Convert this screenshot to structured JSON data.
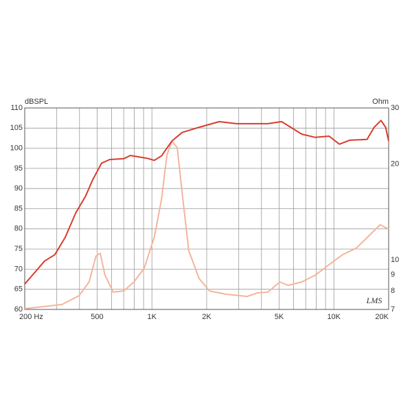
{
  "chart_data": {
    "type": "line",
    "y_label": "dBSPL",
    "y2_label": "Ohm",
    "logo": "LMS",
    "xscale": "log",
    "y2scale": "log",
    "grid": true,
    "xlim": [
      200,
      20000
    ],
    "xticks": [
      {
        "value": 200,
        "label": "200  Hz"
      },
      500,
      {
        "value": 1000,
        "label": "1K"
      },
      {
        "value": 2000,
        "label": "2K"
      },
      {
        "value": 5000,
        "label": "5K"
      },
      {
        "value": 10000,
        "label": "10K"
      },
      {
        "value": 20000,
        "label": "20K"
      }
    ],
    "xgrid": [
      300,
      400,
      600,
      700,
      800,
      900,
      3000,
      4000,
      6000,
      7000,
      8000,
      9000
    ],
    "ylim": [
      60,
      110
    ],
    "yticks": [
      60,
      65,
      70,
      75,
      80,
      85,
      90,
      95,
      100,
      105,
      110
    ],
    "y2lim": [
      7,
      30
    ],
    "y2ticks": [
      7,
      8,
      9,
      10,
      20,
      30
    ],
    "series": [
      {
        "color": "#d93a2b",
        "x": [
          200,
          257,
          293,
          334,
          381,
          433,
          472,
          529,
          587,
          700,
          761,
          833,
          946,
          1031,
          1129,
          1288,
          1465,
          1818,
          2344,
          2920,
          3639,
          4334,
          5160,
          6661,
          7915,
          9407,
          10730,
          12240,
          15210,
          16650,
          18140,
          19250,
          20000
        ],
        "values": [
          66.3,
          72.0,
          73.6,
          77.9,
          83.9,
          88.2,
          92.1,
          96.3,
          97.2,
          97.4,
          98.2,
          97.9,
          97.5,
          97.0,
          98.1,
          101.8,
          103.9,
          105.2,
          106.6,
          106.1,
          106.1,
          106.1,
          106.6,
          103.5,
          102.7,
          103.0,
          101.0,
          102.0,
          102.2,
          105.2,
          106.9,
          105.2,
          101.8
        ]
      },
      {
        "color": "#f4b49a",
        "axis": "y2",
        "x": [
          200,
          320,
          398,
          452,
          493,
          520,
          552,
          613,
          700,
          797,
          907,
          1031,
          1129,
          1210,
          1288,
          1378,
          1465,
          1594,
          1818,
          2072,
          2572,
          3343,
          3803,
          4334,
          5054,
          5608,
          6661,
          7915,
          9407,
          11180,
          13280,
          15780,
          17950,
          20000
        ],
        "values": [
          7.04,
          7.25,
          7.73,
          8.54,
          10.3,
          10.5,
          8.97,
          7.93,
          8.0,
          8.54,
          9.43,
          11.8,
          15.5,
          21.4,
          23.6,
          22.5,
          16.3,
          10.7,
          8.75,
          8.0,
          7.81,
          7.69,
          7.89,
          7.93,
          8.54,
          8.33,
          8.54,
          8.97,
          9.67,
          10.4,
          10.9,
          12.0,
          12.9,
          12.5
        ]
      }
    ]
  }
}
